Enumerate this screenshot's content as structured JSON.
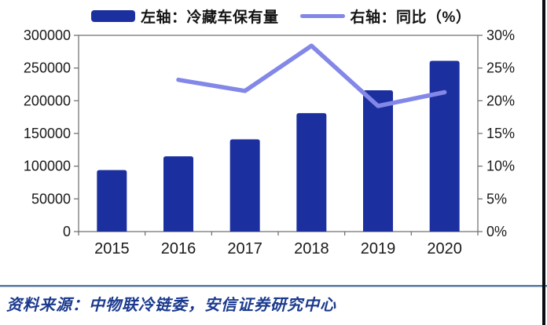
{
  "legend": {
    "bar_label": "左轴：冷藏车保有量",
    "line_label": "右轴：同比（%）"
  },
  "chart_data": {
    "type": "bar",
    "subtype": "bar+line combo, dual axis",
    "categories": [
      "2015",
      "2016",
      "2017",
      "2018",
      "2019",
      "2020"
    ],
    "series": [
      {
        "name": "左轴：冷藏车保有量",
        "type": "bar",
        "axis": "left",
        "values": [
          94000,
          115000,
          141000,
          181000,
          216000,
          261000
        ]
      },
      {
        "name": "右轴：同比（%）",
        "type": "line",
        "axis": "right",
        "values": [
          null,
          23.2,
          21.5,
          28.4,
          19.2,
          21.3
        ]
      }
    ],
    "left_axis": {
      "min": 0,
      "max": 300000,
      "step": 50000,
      "tick_labels": [
        "0",
        "50000",
        "100000",
        "150000",
        "200000",
        "250000",
        "300000"
      ]
    },
    "right_axis": {
      "min": 0,
      "max": 30,
      "step": 5,
      "tick_labels": [
        "0%",
        "5%",
        "10%",
        "15%",
        "20%",
        "25%",
        "30%"
      ]
    },
    "grid": false,
    "legend_position": "top"
  },
  "source": {
    "text": "资料来源：中物联冷链委，安信证券研究中心"
  },
  "colors": {
    "bar": "#1c2f9e",
    "line": "#8287e8",
    "frame": "#6b6b6b",
    "divider": "#53749e",
    "source_text": "#1b3a8e"
  }
}
